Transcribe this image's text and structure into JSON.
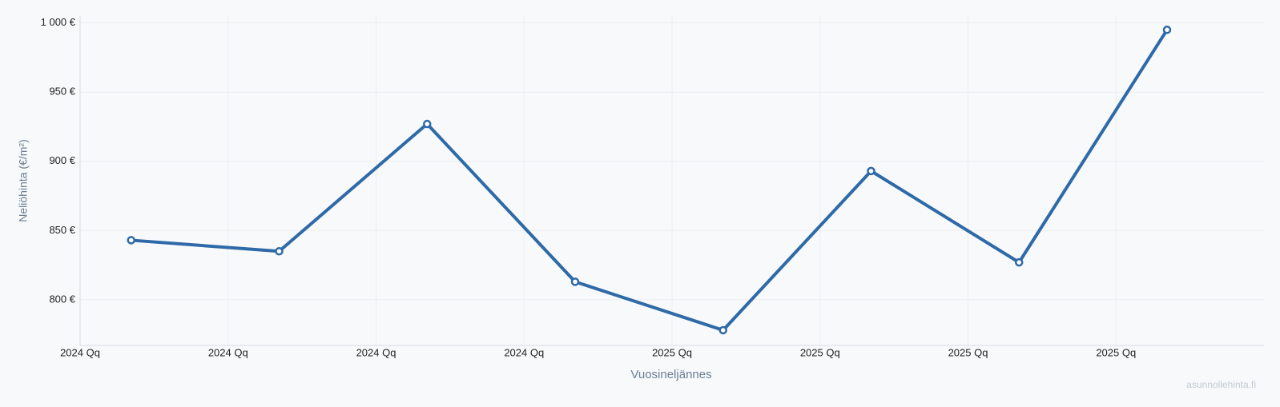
{
  "chart_data": {
    "type": "line",
    "x_label": "Vuosineljännes",
    "y_label": "Neliöhinta (€/m²)",
    "watermark": "asunnollehinta.fi",
    "categories": [
      "2024 Qq",
      "2024 Qq",
      "2024 Qq",
      "2024 Qq",
      "2025 Qq",
      "2025 Qq",
      "2025 Qq",
      "2025 Qq"
    ],
    "series": [
      {
        "color": "#2f6aa8",
        "values": [
          843,
          835,
          927,
          813,
          778,
          893,
          827,
          995
        ]
      }
    ],
    "ylim": [
      767,
      1005
    ],
    "yticks": [
      {
        "value": 800,
        "label": "800 €"
      },
      {
        "value": 850,
        "label": "850 €"
      },
      {
        "value": 900,
        "label": "900 €"
      },
      {
        "value": 950,
        "label": "950 €"
      },
      {
        "value": 1000,
        "label": "1 000 €"
      }
    ],
    "grid": true
  }
}
